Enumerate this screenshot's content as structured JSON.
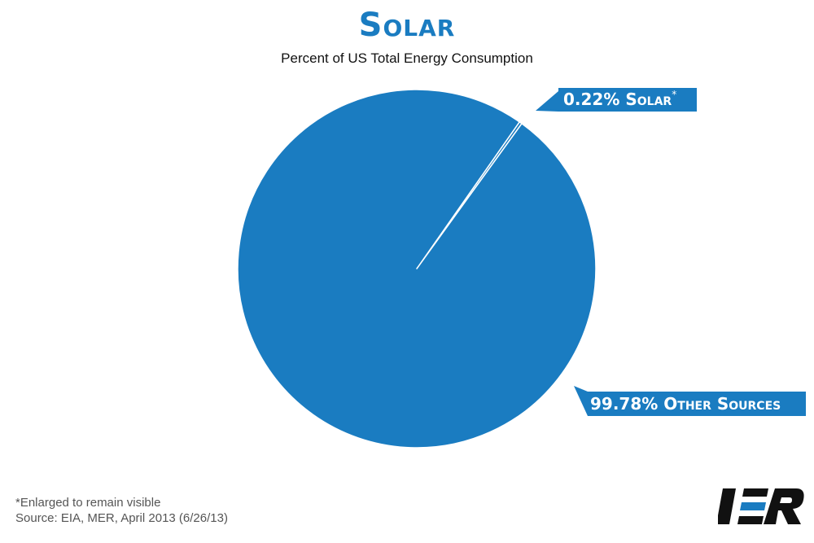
{
  "chart_data": {
    "type": "pie",
    "title": "Solar",
    "subtitle": "Percent of US Total Energy Consumption",
    "slices": [
      {
        "label": "Solar",
        "value": 0.22,
        "display": "0.22%",
        "footnote_mark": "*"
      },
      {
        "label": "Other Sources",
        "value": 99.78,
        "display": "99.78%"
      }
    ],
    "colors": {
      "slice": "#1a7cc1",
      "separator": "#ffffff"
    },
    "legend": "none"
  },
  "labels": {
    "solar_callout": "0.22% Solar",
    "solar_mark": "*",
    "other_callout": "99.78% Other Sources"
  },
  "footer": {
    "note": "*Enlarged to remain visible",
    "source": "Source: EIA, MER, April 2013 (6/26/13)"
  },
  "logo": {
    "text": "IER",
    "color": "#111111",
    "accent": "#1a7cc1"
  }
}
